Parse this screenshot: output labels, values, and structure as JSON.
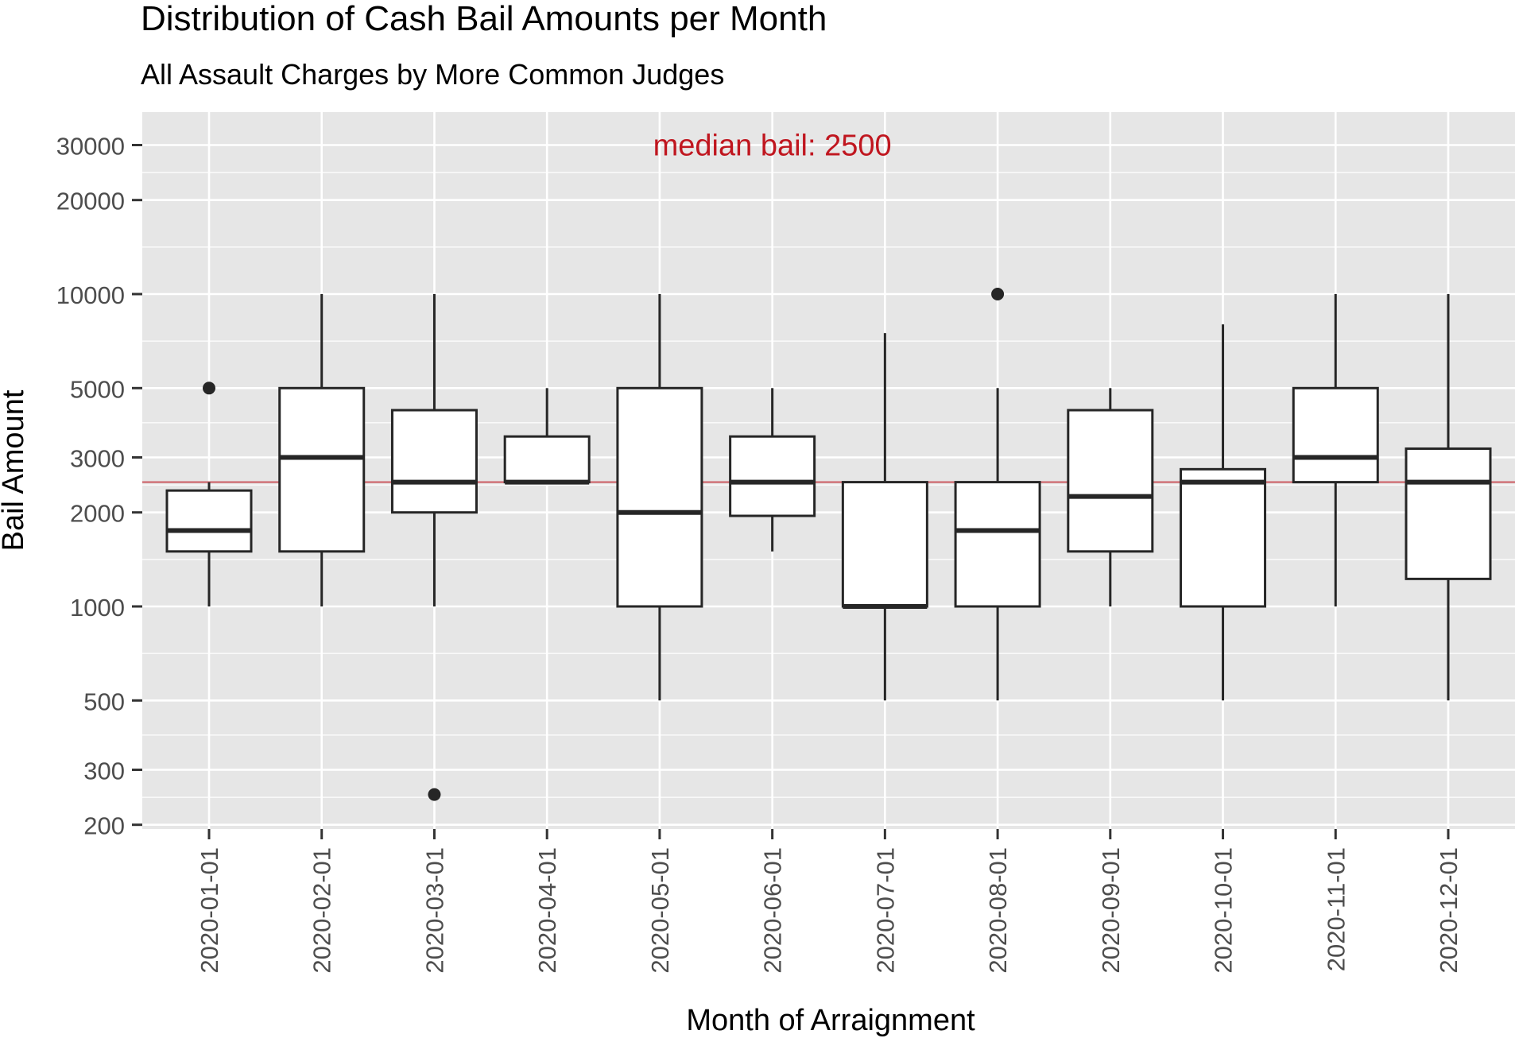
{
  "chart_data": {
    "type": "boxplot",
    "title": "Distribution of Cash Bail Amounts per Month",
    "subtitle": "All Assault Charges by More Common Judges",
    "xlabel": "Month of Arraignment",
    "ylabel": "Bail Amount",
    "y_scale": "log10",
    "ylim": [
      200,
      35000
    ],
    "y_ticks": [
      200,
      300,
      500,
      1000,
      2000,
      3000,
      5000,
      10000,
      20000,
      30000
    ],
    "y_tick_labels": [
      "200",
      "300",
      "500",
      "1000",
      "2000",
      "3000",
      "5000",
      "10000",
      "20000",
      "30000"
    ],
    "categories": [
      "2020-01-01",
      "2020-02-01",
      "2020-03-01",
      "2020-04-01",
      "2020-05-01",
      "2020-06-01",
      "2020-07-01",
      "2020-08-01",
      "2020-09-01",
      "2020-10-01",
      "2020-11-01",
      "2020-12-01"
    ],
    "boxes": [
      {
        "min": 1000,
        "q1": 1500,
        "median": 1750,
        "q3": 2350,
        "max": 2500,
        "outliers": [
          5000
        ]
      },
      {
        "min": 1000,
        "q1": 1500,
        "median": 3000,
        "q3": 5000,
        "max": 10000,
        "outliers": []
      },
      {
        "min": 1000,
        "q1": 2000,
        "median": 2500,
        "q3": 4250,
        "max": 10000,
        "outliers": [
          250
        ]
      },
      {
        "min": 2500,
        "q1": 2500,
        "median": 2500,
        "q3": 3500,
        "max": 5000,
        "outliers": []
      },
      {
        "min": 500,
        "q1": 1000,
        "median": 2000,
        "q3": 5000,
        "max": 10000,
        "outliers": []
      },
      {
        "min": 1500,
        "q1": 1950,
        "median": 2500,
        "q3": 3500,
        "max": 5000,
        "outliers": []
      },
      {
        "min": 500,
        "q1": 1000,
        "median": 1000,
        "q3": 2500,
        "max": 7500,
        "outliers": []
      },
      {
        "min": 500,
        "q1": 1000,
        "median": 1750,
        "q3": 2500,
        "max": 5000,
        "outliers": [
          10000
        ]
      },
      {
        "min": 1000,
        "q1": 1500,
        "median": 2250,
        "q3": 4250,
        "max": 5000,
        "outliers": []
      },
      {
        "min": 500,
        "q1": 1000,
        "median": 2500,
        "q3": 2750,
        "max": 8000,
        "outliers": []
      },
      {
        "min": 1000,
        "q1": 2500,
        "median": 3000,
        "q3": 5000,
        "max": 10000,
        "outliers": []
      },
      {
        "min": 500,
        "q1": 1225,
        "median": 2500,
        "q3": 3200,
        "max": 10000,
        "outliers": []
      }
    ],
    "reference_line": {
      "value": 2500,
      "color": "#c0161f"
    },
    "annotation": {
      "text": "median bail: 2500",
      "x_category": "2020-05-01",
      "x_offset_categories": 1,
      "y": 30000,
      "color": "#c0161f"
    },
    "grid": true,
    "colors": {
      "panel": "#e6e6e6",
      "grid": "#ffffff",
      "box_fill": "#ffffff",
      "box_stroke": "#262626",
      "axis_text": "#4d4d4d"
    }
  }
}
